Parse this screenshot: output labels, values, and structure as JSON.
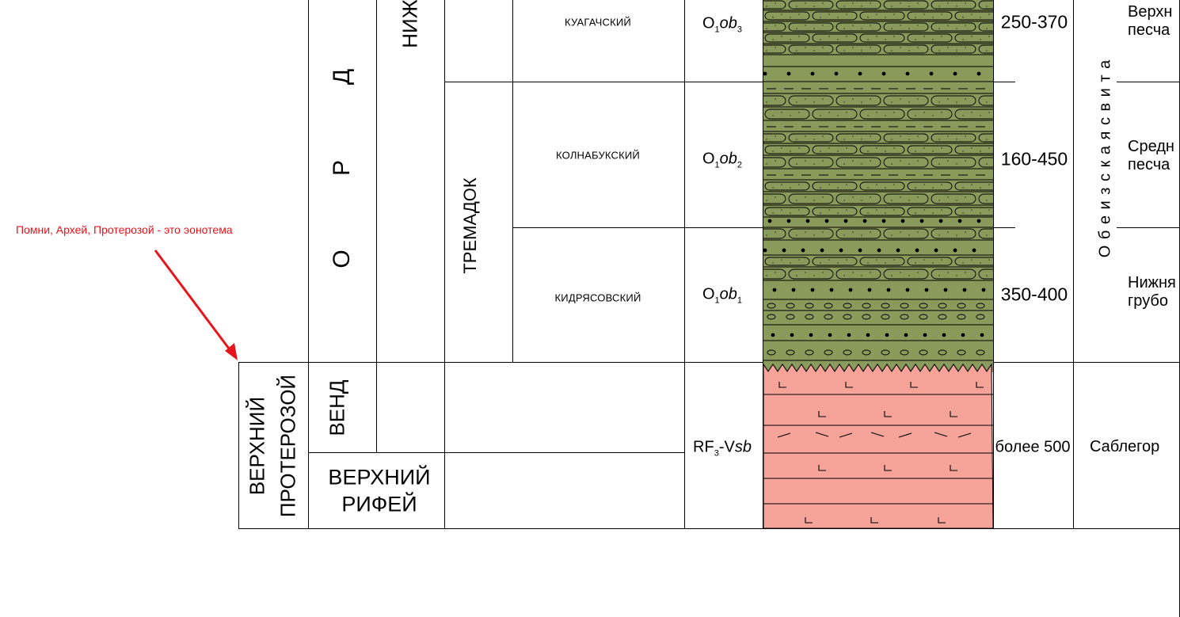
{
  "annotation": {
    "text": "Помни, Архей, Протерозой - это эонотема",
    "color": "#e8141c"
  },
  "columns": {
    "system_ordovik": [
      "О",
      "Р",
      "Д"
    ],
    "series_lower": "НИЖ",
    "stage_tremadoc": "ТРЕМАДОК",
    "erathem": {
      "line1": "ВЕРХНИЙ",
      "line2": "ПРОТЕРОЗОЙ"
    },
    "vend": "ВЕНД",
    "upper_riphean": {
      "line1": "ВЕРХНИЙ",
      "line2": "РИФЕЙ"
    },
    "formation_vertical": "О б е и з с к а я   с в и т а"
  },
  "layers": [
    {
      "horizon": "КУАГАЧСКИЙ",
      "index_base": "O",
      "index_sub1": "1",
      "index_ital": "ob",
      "index_sub2": "3",
      "thickness": "250-370",
      "desc1": "Верхн",
      "desc2": "песча"
    },
    {
      "horizon": "КОЛНАБУКСКИЙ",
      "index_base": "O",
      "index_sub1": "1",
      "index_ital": "ob",
      "index_sub2": "2",
      "thickness": "160-450",
      "desc1": "Средн",
      "desc2": "песча"
    },
    {
      "horizon": "КИДРЯСОВСКИЙ",
      "index_base": "O",
      "index_sub1": "1",
      "index_ital": "ob",
      "index_sub2": "1",
      "thickness": "350-400",
      "desc1": "Нижня",
      "desc2": "грубо"
    },
    {
      "horizon": "",
      "index_base": "RF",
      "index_sub1": "3",
      "index_ital": "sb",
      "index_mid": "-V",
      "thickness": "более 500",
      "desc1": "Саблегор",
      "desc2": ""
    }
  ],
  "colors": {
    "olive": "#8a9a5b",
    "pink": "#f6a39a",
    "annotation_red": "#e8141c"
  }
}
